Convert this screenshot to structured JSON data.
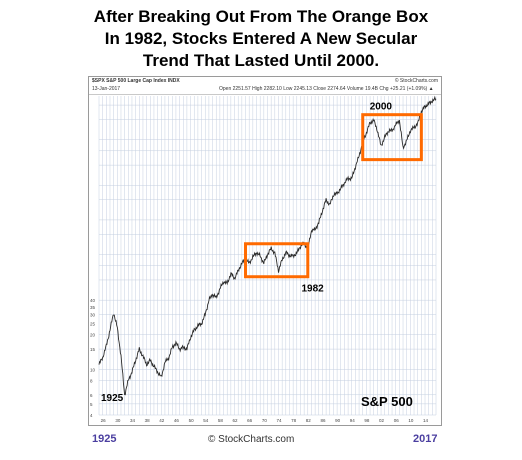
{
  "headline": {
    "line1": "After Breaking Out From The Orange Box",
    "line2": "In 1982, Stocks Entered A New Secular",
    "line3": "Trend That Lasted Until 2000."
  },
  "chart_header": {
    "ticker_line": "$SPX S&P 500 Large Cap Index INDX",
    "date_line": "13-Jan-2017",
    "ohlc_line": "Open 2251.57   High 2282.10   Low 2245.13   Close 2274.64   Volume 19.4B   Chg +25.21 (+1.09%) ▲",
    "credit": "© StockCharts.com"
  },
  "footer": {
    "left_year": "1925",
    "right_year": "2017",
    "credit": "© StockCharts.com"
  },
  "colors": {
    "price_line": "#2a2a2a",
    "box": "#ff6a00",
    "grid": "#c4cfe0",
    "bottom_year_label": "#4b3fa0"
  },
  "chart_data": {
    "type": "line",
    "title": "S&P 500",
    "xlabel": "",
    "ylabel": "",
    "y_scale": "log",
    "xlim": [
      1925,
      2017
    ],
    "ylim": [
      4,
      2400
    ],
    "grid": true,
    "x": [
      1925,
      1926,
      1927,
      1928,
      1929,
      1930,
      1931,
      1932,
      1933,
      1934,
      1935,
      1936,
      1937,
      1938,
      1939,
      1940,
      1941,
      1942,
      1943,
      1944,
      1945,
      1946,
      1947,
      1948,
      1949,
      1950,
      1951,
      1952,
      1953,
      1954,
      1955,
      1956,
      1957,
      1958,
      1959,
      1960,
      1961,
      1962,
      1963,
      1964,
      1965,
      1966,
      1967,
      1968,
      1969,
      1970,
      1971,
      1972,
      1973,
      1974,
      1975,
      1976,
      1977,
      1978,
      1979,
      1980,
      1981,
      1982,
      1983,
      1984,
      1985,
      1986,
      1987,
      1988,
      1989,
      1990,
      1991,
      1992,
      1993,
      1994,
      1995,
      1996,
      1997,
      1998,
      1999,
      2000,
      2001,
      2002,
      2003,
      2004,
      2005,
      2006,
      2007,
      2008,
      2009,
      2010,
      2011,
      2012,
      2013,
      2014,
      2015,
      2016,
      2017
    ],
    "y": [
      11,
      12.7,
      16,
      22,
      31,
      23,
      13,
      6,
      8,
      9.5,
      12,
      15,
      13,
      11,
      12,
      10.6,
      9.5,
      8.5,
      11.5,
      12.5,
      15.5,
      17,
      15,
      15.5,
      15,
      19,
      22,
      24,
      25,
      30,
      40,
      45,
      42,
      50,
      58,
      56,
      68,
      62,
      72,
      84,
      91,
      84,
      95,
      104,
      97,
      84,
      100,
      113,
      103,
      72,
      90,
      104,
      98,
      97,
      103,
      118,
      126,
      111,
      162,
      165,
      190,
      240,
      300,
      270,
      330,
      340,
      375,
      420,
      460,
      460,
      580,
      720,
      950,
      1150,
      1400,
      1480,
      1200,
      880,
      1050,
      1190,
      1200,
      1350,
      1480,
      850,
      980,
      1200,
      1280,
      1380,
      1750,
      1950,
      2050,
      2180,
      2270
    ],
    "series": [
      {
        "name": "S&P 500"
      }
    ],
    "annotations": [
      {
        "text": "1925",
        "x": 1925
      },
      {
        "text": "1982",
        "x": 1982
      },
      {
        "text": "2000",
        "x": 2000
      }
    ],
    "boxes": [
      {
        "x_start": 1965,
        "x_end": 1982,
        "y_low": 64,
        "y_high": 124
      },
      {
        "x_start": 1997,
        "x_end": 2013,
        "y_low": 670,
        "y_high": 1650
      }
    ],
    "y_tick_labels": [
      "40",
      "35",
      "30",
      "25",
      "20",
      "15",
      "10",
      "8",
      "6",
      "5",
      "4"
    ],
    "x_tick_labels": [
      "26",
      "30",
      "34",
      "38",
      "42",
      "46",
      "50",
      "54",
      "58",
      "62",
      "66",
      "70",
      "74",
      "78",
      "82",
      "86",
      "90",
      "94",
      "98",
      "02",
      "06",
      "10",
      "14"
    ]
  }
}
